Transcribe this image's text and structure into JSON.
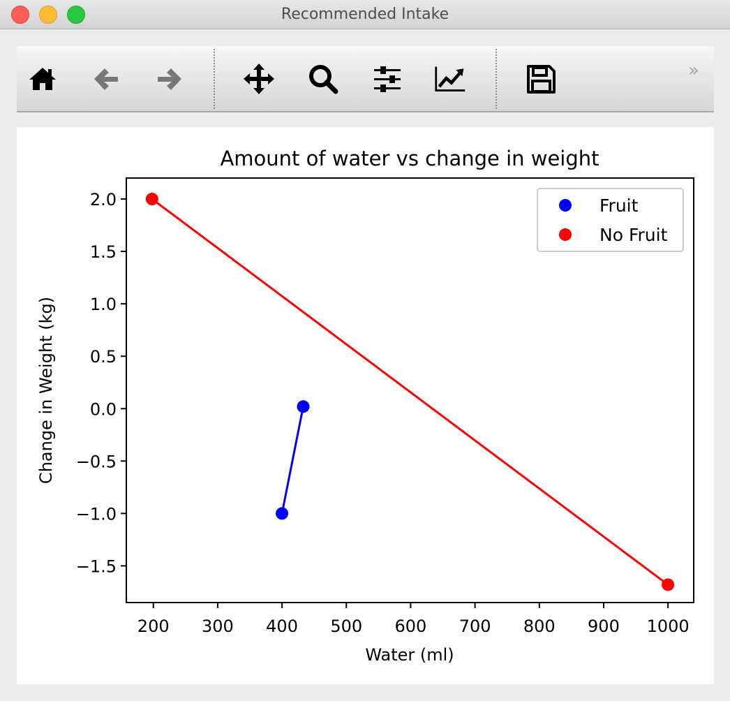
{
  "window": {
    "title": "Recommended Intake",
    "buttons": [
      "close",
      "minimize",
      "zoom"
    ]
  },
  "toolbar": {
    "items": [
      {
        "name": "home-button",
        "icon": "home-icon",
        "label": "Home"
      },
      {
        "name": "back-button",
        "icon": "arrow-left-icon",
        "label": "Back"
      },
      {
        "name": "forward-button",
        "icon": "arrow-right-icon",
        "label": "Forward"
      },
      {
        "name": "pan-button",
        "icon": "move-arrows-icon",
        "label": "Pan"
      },
      {
        "name": "zoom-button",
        "icon": "magnifier-icon",
        "label": "Zoom"
      },
      {
        "name": "subplots-button",
        "icon": "sliders-icon",
        "label": "Subplots"
      },
      {
        "name": "edit-axis-button",
        "icon": "line-chart-icon",
        "label": "Customize"
      },
      {
        "name": "save-button",
        "icon": "floppy-disk-icon",
        "label": "Save"
      }
    ],
    "overflow_label": "»"
  },
  "chart_data": {
    "type": "line",
    "title": "Amount of water vs change in weight",
    "xlabel": "Water (ml)",
    "ylabel": "Change in Weight (kg)",
    "xlim": [
      158,
      1040
    ],
    "ylim": [
      -1.85,
      2.2
    ],
    "xticks": [
      200,
      300,
      400,
      500,
      600,
      700,
      800,
      900,
      1000
    ],
    "yticks": [
      2.0,
      1.5,
      1.0,
      0.5,
      0.0,
      -0.5,
      -1.0,
      -1.5
    ],
    "ytick_labels": [
      "2.0",
      "1.5",
      "1.0",
      "0.5",
      "0.0",
      "−0.5",
      "−1.0",
      "−1.5"
    ],
    "grid": false,
    "legend_position": "top-right",
    "series": [
      {
        "name": "Fruit",
        "color": "#0000ff",
        "x": [
          400,
          433
        ],
        "y": [
          -1.0,
          0.02
        ]
      },
      {
        "name": "No Fruit",
        "color": "#ff0000",
        "x": [
          198,
          1000
        ],
        "y": [
          2.0,
          -1.68
        ]
      }
    ]
  }
}
